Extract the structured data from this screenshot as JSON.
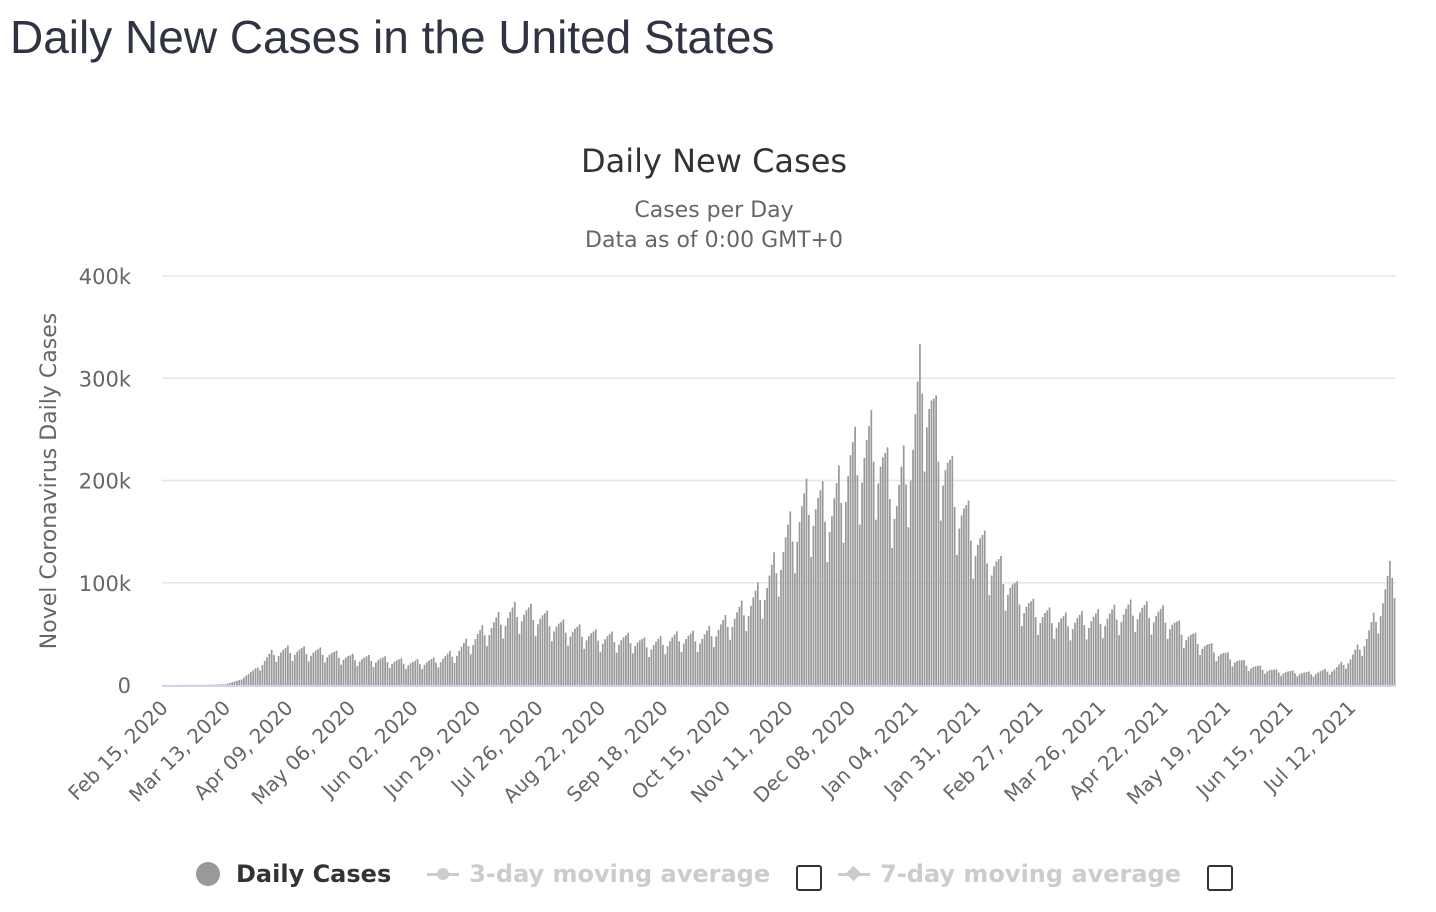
{
  "page": {
    "title": "Daily New Cases in the United States"
  },
  "chart_data": {
    "type": "bar",
    "title": "Daily New Cases",
    "subtitle_lines": [
      "Cases per Day",
      "Data as of 0:00 GMT+0"
    ],
    "ylabel": "Novel Coronavirus Daily Cases",
    "xlabel": "",
    "ylim": [
      0,
      400000
    ],
    "y_ticks": [
      {
        "value": 0,
        "label": "0"
      },
      {
        "value": 100000,
        "label": "100k"
      },
      {
        "value": 200000,
        "label": "200k"
      },
      {
        "value": 300000,
        "label": "300k"
      },
      {
        "value": 400000,
        "label": "400k"
      }
    ],
    "grid": true,
    "x_start_date": "2020-02-15",
    "x_tick_interval_days": 27,
    "x_tick_labels": [
      "Feb 15, 2020",
      "Mar 13, 2020",
      "Apr 09, 2020",
      "May 06, 2020",
      "Jun 02, 2020",
      "Jun 29, 2020",
      "Jul 26, 2020",
      "Aug 22, 2020",
      "Sep 18, 2020",
      "Oct 15, 2020",
      "Nov 11, 2020",
      "Dec 08, 2020",
      "Jan 04, 2021",
      "Jan 31, 2021",
      "Feb 27, 2021",
      "Mar 26, 2021",
      "Apr 22, 2021",
      "May 19, 2021",
      "Jun 15, 2021",
      "Jul 12, 2021"
    ],
    "x_end_date": "2021-07-31",
    "bar_color": "#999999",
    "series": [
      {
        "name": "Daily Cases",
        "anchors": [
          [
            "2020-02-15",
            0
          ],
          [
            "2020-03-05",
            200
          ],
          [
            "2020-03-13",
            700
          ],
          [
            "2020-03-20",
            5500
          ],
          [
            "2020-03-27",
            18000
          ],
          [
            "2020-04-03",
            31000
          ],
          [
            "2020-04-10",
            33000
          ],
          [
            "2020-04-24",
            31000
          ],
          [
            "2020-05-06",
            26000
          ],
          [
            "2020-05-20",
            24000
          ],
          [
            "2020-06-02",
            21000
          ],
          [
            "2020-06-12",
            23000
          ],
          [
            "2020-06-20",
            30000
          ],
          [
            "2020-06-29",
            45000
          ],
          [
            "2020-07-10",
            62000
          ],
          [
            "2020-07-17",
            70000
          ],
          [
            "2020-07-26",
            66000
          ],
          [
            "2020-08-05",
            55000
          ],
          [
            "2020-08-22",
            45000
          ],
          [
            "2020-09-05",
            43000
          ],
          [
            "2020-09-12",
            38000
          ],
          [
            "2020-09-25",
            45000
          ],
          [
            "2020-10-05",
            45000
          ],
          [
            "2020-10-15",
            58000
          ],
          [
            "2020-10-25",
            75000
          ],
          [
            "2020-11-02",
            95000
          ],
          [
            "2020-11-11",
            140000
          ],
          [
            "2020-11-20",
            175000
          ],
          [
            "2020-11-30",
            165000
          ],
          [
            "2020-12-08",
            210000
          ],
          [
            "2020-12-18",
            230000
          ],
          [
            "2020-12-28",
            175000
          ],
          [
            "2021-01-04",
            230000
          ],
          [
            "2021-01-08",
            300000
          ],
          [
            "2021-01-15",
            230000
          ],
          [
            "2021-01-24",
            170000
          ],
          [
            "2021-01-31",
            140000
          ],
          [
            "2021-02-10",
            110000
          ],
          [
            "2021-02-20",
            80000
          ],
          [
            "2021-02-27",
            68000
          ],
          [
            "2021-03-10",
            60000
          ],
          [
            "2021-03-26",
            63000
          ],
          [
            "2021-04-10",
            72000
          ],
          [
            "2021-04-22",
            66000
          ],
          [
            "2021-05-01",
            50000
          ],
          [
            "2021-05-10",
            38000
          ],
          [
            "2021-05-19",
            28000
          ],
          [
            "2021-05-30",
            18000
          ],
          [
            "2021-06-10",
            13000
          ],
          [
            "2021-06-25",
            11000
          ],
          [
            "2021-07-05",
            15000
          ],
          [
            "2021-07-12",
            25000
          ],
          [
            "2021-07-19",
            45000
          ],
          [
            "2021-07-26",
            80000
          ],
          [
            "2021-07-31",
            118000
          ]
        ]
      }
    ],
    "legend": {
      "position": "bottom",
      "items": [
        {
          "label": "Daily Cases",
          "active": true
        },
        {
          "label": "3-day moving average",
          "active": false
        },
        {
          "label": "7-day moving average",
          "active": false
        }
      ]
    }
  }
}
